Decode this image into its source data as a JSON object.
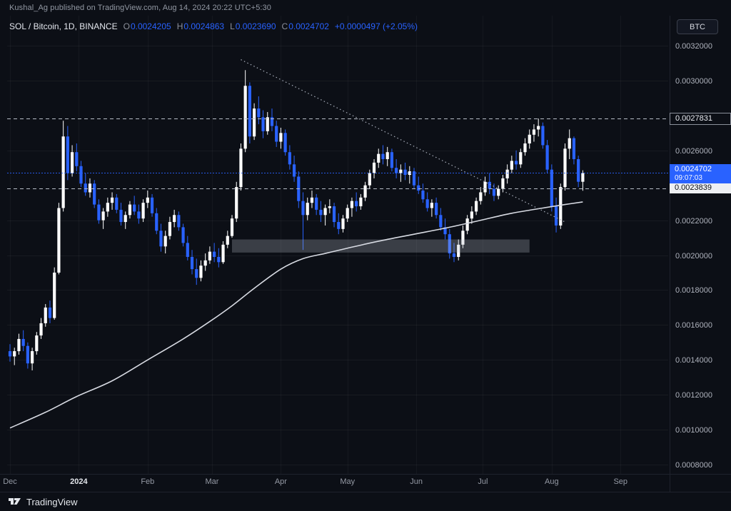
{
  "publish_bar": {
    "text": "Kushal_Ag published on TradingView.com, Aug 14, 2024 20:22 UTC+5:30"
  },
  "legend": {
    "symbol": "SOL / Bitcoin, 1D, BINANCE",
    "ohlc": [
      {
        "key": "O",
        "value": "0.0024205"
      },
      {
        "key": "H",
        "value": "0.0024863"
      },
      {
        "key": "L",
        "value": "0.0023690"
      },
      {
        "key": "C",
        "value": "0.0024702"
      }
    ],
    "change": "+0.0000497 (+2.05%)"
  },
  "axis_button": {
    "label": "BTC"
  },
  "bottom_bar": {
    "brand": "TradingView",
    "logo_icon": "tradingview-logo"
  },
  "colors": {
    "background": "#0c0f16",
    "up": "#ffffff",
    "down": "#2962ff",
    "accent_blue": "#2962ff",
    "ma": "#d7dae2",
    "level": "#b7bcc6",
    "trendline": "#aab0bc",
    "zone": "rgba(180,186,198,0.28)",
    "axis_text": "#aeb2bc",
    "muted_text": "#9298a3"
  },
  "chart_data": {
    "type": "candlestick",
    "title": "SOL / Bitcoin, 1D, BINANCE",
    "timeframe": "1D",
    "price_scale": 1e-07,
    "y_axis": {
      "top": 33718,
      "bottom": 7470
    },
    "y_ticks": [
      "0.0032000",
      "0.0030000",
      "0.0026000",
      "0.0022000",
      "0.0020000",
      "0.0018000",
      "0.0016000",
      "0.0014000",
      "0.0012000",
      "0.0010000",
      "0.0008000"
    ],
    "x_ticks": [
      {
        "label": "Dec",
        "index": 0
      },
      {
        "label": "2024",
        "index": 15.5,
        "year": true
      },
      {
        "label": "Feb",
        "index": 31
      },
      {
        "label": "Mar",
        "index": 45.5
      },
      {
        "label": "Apr",
        "index": 61
      },
      {
        "label": "May",
        "index": 76
      },
      {
        "label": "Jun",
        "index": 91.5
      },
      {
        "label": "Jul",
        "index": 106.5
      },
      {
        "label": "Aug",
        "index": 122
      },
      {
        "label": "Sep",
        "index": 137.5
      }
    ],
    "candles": [
      [
        14500,
        14900,
        13900,
        14200
      ],
      [
        14200,
        14700,
        13700,
        14500
      ],
      [
        14500,
        15500,
        14300,
        15200
      ],
      [
        15200,
        15700,
        14500,
        14800
      ],
      [
        14800,
        15000,
        13500,
        13800
      ],
      [
        13800,
        14700,
        13400,
        14500
      ],
      [
        14500,
        15600,
        14300,
        15400
      ],
      [
        15400,
        16400,
        15200,
        16100
      ],
      [
        16100,
        17200,
        15900,
        17000
      ],
      [
        17000,
        17400,
        16100,
        16400
      ],
      [
        16400,
        19300,
        16300,
        19000
      ],
      [
        19000,
        23000,
        18900,
        22700
      ],
      [
        22700,
        27700,
        22500,
        26800
      ],
      [
        26800,
        27400,
        24300,
        24700
      ],
      [
        24700,
        26300,
        24500,
        25900
      ],
      [
        25900,
        26400,
        24800,
        25100
      ],
      [
        25100,
        25400,
        23900,
        24100
      ],
      [
        24100,
        24700,
        23400,
        23600
      ],
      [
        23600,
        24400,
        23300,
        24100
      ],
      [
        24100,
        24300,
        22700,
        22900
      ],
      [
        22900,
        23200,
        21800,
        22000
      ],
      [
        22000,
        22700,
        21500,
        22500
      ],
      [
        22500,
        23300,
        22200,
        23000
      ],
      [
        23000,
        23600,
        22600,
        23300
      ],
      [
        23300,
        23500,
        22400,
        22600
      ],
      [
        22600,
        23000,
        21700,
        21900
      ],
      [
        21900,
        22500,
        21500,
        22300
      ],
      [
        22300,
        23100,
        22100,
        22900
      ],
      [
        22900,
        23400,
        22300,
        22500
      ],
      [
        22500,
        22900,
        21800,
        22100
      ],
      [
        22100,
        23200,
        21900,
        23000
      ],
      [
        23000,
        23700,
        22700,
        23300
      ],
      [
        23300,
        23500,
        22200,
        22400
      ],
      [
        22400,
        22700,
        21200,
        21400
      ],
      [
        21400,
        21800,
        20200,
        20500
      ],
      [
        20500,
        21400,
        20100,
        21100
      ],
      [
        21100,
        22200,
        20900,
        21900
      ],
      [
        21900,
        22600,
        21600,
        22300
      ],
      [
        22300,
        22500,
        21400,
        21600
      ],
      [
        21600,
        21800,
        20500,
        20700
      ],
      [
        20700,
        21100,
        19700,
        19900
      ],
      [
        19900,
        20300,
        18900,
        19200
      ],
      [
        19200,
        19800,
        18300,
        18700
      ],
      [
        18700,
        19700,
        18500,
        19400
      ],
      [
        19400,
        20100,
        19100,
        19700
      ],
      [
        19700,
        20500,
        19500,
        20200
      ],
      [
        20200,
        20700,
        19600,
        19900
      ],
      [
        19900,
        20400,
        19300,
        19600
      ],
      [
        19600,
        20800,
        19500,
        20600
      ],
      [
        20600,
        21400,
        20400,
        21100
      ],
      [
        21100,
        22300,
        21000,
        22100
      ],
      [
        22100,
        24200,
        21900,
        23900
      ],
      [
        23900,
        26400,
        23700,
        26100
      ],
      [
        26100,
        30600,
        25900,
        29700
      ],
      [
        29700,
        29900,
        26400,
        26800
      ],
      [
        26800,
        28700,
        26600,
        28400
      ],
      [
        28400,
        29100,
        27500,
        27900
      ],
      [
        27900,
        28300,
        26700,
        27100
      ],
      [
        27100,
        28200,
        26900,
        27900
      ],
      [
        27900,
        28400,
        27100,
        27400
      ],
      [
        27400,
        27700,
        26200,
        26500
      ],
      [
        26500,
        27300,
        26100,
        27000
      ],
      [
        27000,
        27200,
        25700,
        25900
      ],
      [
        25900,
        26300,
        24900,
        25200
      ],
      [
        25200,
        25700,
        24200,
        24500
      ],
      [
        24500,
        24800,
        22700,
        23100
      ],
      [
        23100,
        23600,
        20300,
        22300
      ],
      [
        22300,
        23300,
        22000,
        23000
      ],
      [
        23000,
        23700,
        22700,
        23300
      ],
      [
        23300,
        23500,
        22300,
        22600
      ],
      [
        22600,
        23100,
        21900,
        22300
      ],
      [
        22300,
        22900,
        21700,
        22700
      ],
      [
        22700,
        23200,
        22400,
        22800
      ],
      [
        22800,
        23000,
        21600,
        21900
      ],
      [
        21900,
        22400,
        21200,
        21500
      ],
      [
        21500,
        22300,
        21300,
        22100
      ],
      [
        22100,
        22900,
        21900,
        22700
      ],
      [
        22700,
        23300,
        22200,
        23100
      ],
      [
        23100,
        23600,
        22500,
        22800
      ],
      [
        22800,
        23500,
        22600,
        23300
      ],
      [
        23300,
        24200,
        23100,
        24000
      ],
      [
        24000,
        24900,
        23800,
        24700
      ],
      [
        24700,
        25500,
        24400,
        25300
      ],
      [
        25300,
        26100,
        25000,
        25800
      ],
      [
        25800,
        26300,
        25200,
        25500
      ],
      [
        25500,
        26200,
        25100,
        25900
      ],
      [
        25900,
        26100,
        24800,
        25000
      ],
      [
        25000,
        25500,
        24400,
        24700
      ],
      [
        24700,
        25200,
        24200,
        24900
      ],
      [
        24900,
        25300,
        24300,
        24600
      ],
      [
        24600,
        25100,
        24100,
        24800
      ],
      [
        24800,
        25000,
        23800,
        24000
      ],
      [
        24000,
        24500,
        23500,
        23700
      ],
      [
        23700,
        24100,
        23000,
        23200
      ],
      [
        23200,
        23600,
        22500,
        22700
      ],
      [
        22700,
        23200,
        22200,
        23000
      ],
      [
        23000,
        23300,
        22100,
        22300
      ],
      [
        22300,
        22700,
        21400,
        21600
      ],
      [
        21600,
        22100,
        20900,
        21200
      ],
      [
        21200,
        21500,
        19800,
        20100
      ],
      [
        20100,
        20700,
        19600,
        19900
      ],
      [
        19900,
        20900,
        19700,
        20600
      ],
      [
        20600,
        21700,
        20400,
        21400
      ],
      [
        21400,
        22300,
        21200,
        22100
      ],
      [
        22100,
        22800,
        21800,
        22500
      ],
      [
        22500,
        23300,
        22300,
        23100
      ],
      [
        23100,
        23900,
        22900,
        23600
      ],
      [
        23600,
        24500,
        23400,
        24200
      ],
      [
        24200,
        24700,
        23500,
        23800
      ],
      [
        23800,
        24100,
        23100,
        23400
      ],
      [
        23400,
        24000,
        23200,
        23800
      ],
      [
        23800,
        24600,
        23600,
        24400
      ],
      [
        24400,
        25200,
        24100,
        24900
      ],
      [
        24900,
        25700,
        24700,
        25400
      ],
      [
        25400,
        26000,
        24900,
        25200
      ],
      [
        25200,
        26100,
        25000,
        25900
      ],
      [
        25900,
        26700,
        25700,
        26400
      ],
      [
        26400,
        27200,
        26100,
        26900
      ],
      [
        26900,
        27500,
        26500,
        27200
      ],
      [
        27200,
        27831,
        26800,
        27400
      ],
      [
        27400,
        27600,
        26100,
        26300
      ],
      [
        26300,
        26600,
        24700,
        24900
      ],
      [
        24900,
        25200,
        22500,
        22800
      ],
      [
        22800,
        23300,
        21300,
        21700
      ],
      [
        21700,
        24100,
        21500,
        23900
      ],
      [
        23900,
        26400,
        23700,
        26100
      ],
      [
        26100,
        27200,
        25500,
        26700
      ],
      [
        26700,
        26800,
        25200,
        25500
      ],
      [
        25500,
        25700,
        23900,
        24205
      ],
      [
        24205,
        24863,
        23690,
        24702
      ]
    ],
    "ma_line": {
      "color": "#d7dae2",
      "points": [
        [
          0,
          10100
        ],
        [
          8,
          11000
        ],
        [
          15,
          11900
        ],
        [
          23,
          12800
        ],
        [
          31,
          14000
        ],
        [
          39,
          15200
        ],
        [
          45,
          16200
        ],
        [
          50,
          17100
        ],
        [
          55,
          18100
        ],
        [
          61,
          19200
        ],
        [
          66,
          19800
        ],
        [
          71,
          20100
        ],
        [
          76,
          20400
        ],
        [
          83,
          20800
        ],
        [
          91,
          21200
        ],
        [
          99,
          21600
        ],
        [
          106,
          22000
        ],
        [
          113,
          22400
        ],
        [
          120,
          22700
        ],
        [
          125,
          22900
        ],
        [
          129,
          23050
        ]
      ]
    },
    "trendline": {
      "from": [
        52,
        31200
      ],
      "to": [
        125,
        21900
      ],
      "style": "dotted"
    },
    "levels": [
      {
        "price": 27831,
        "label": "0.0027831",
        "style": "dark"
      },
      {
        "price": 23839,
        "label": "0.0023839",
        "style": "light"
      }
    ],
    "current_price": {
      "price": 24702,
      "label": "0.0024702",
      "countdown": "09:07:03"
    },
    "zone": {
      "from_index": 50,
      "to_index": 117,
      "top": 20900,
      "bottom": 20150
    }
  }
}
